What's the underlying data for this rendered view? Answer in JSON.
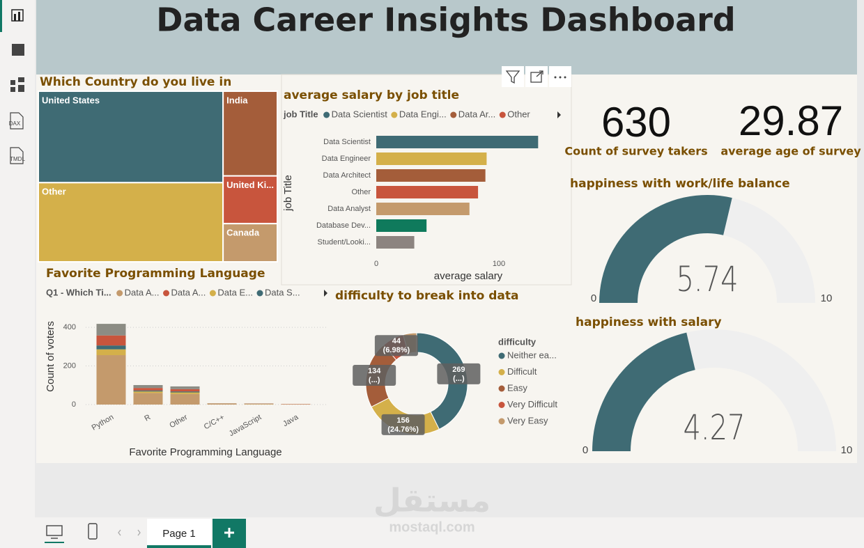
{
  "sidebar": {
    "items": [
      "DAX",
      "TMDL"
    ]
  },
  "header": {
    "title": "Data Career Insights Dashboard"
  },
  "chart_data": [
    {
      "type": "treemap",
      "title": "Which Country do you live in",
      "categories": [
        "United States",
        "Other",
        "India",
        "United Ki...",
        "Canada"
      ],
      "values": [
        261,
        226,
        71,
        40,
        32
      ],
      "colors": [
        "#3f6b74",
        "#d4b04a",
        "#a45d3a",
        "#c8553d",
        "#c49a6c"
      ]
    },
    {
      "type": "hbar",
      "title": "average salary by job title",
      "legend": {
        "title": "job Title",
        "items": [
          {
            "name": "Data Scientist",
            "color": "#3f6b74"
          },
          {
            "name": "Data Engi...",
            "color": "#d4b04a"
          },
          {
            "name": "Data Ar...",
            "color": "#a45d3a"
          },
          {
            "name": "Other",
            "color": "#c8553d"
          }
        ]
      },
      "y_label": "job Title",
      "x_label": "average salary",
      "categories": [
        "Data Scientist",
        "Data Engineer",
        "Data Architect",
        "Other",
        "Data Analyst",
        "Database Dev...",
        "Student/Looki..."
      ],
      "values": [
        132,
        90,
        89,
        83,
        76,
        41,
        31
      ],
      "colors": [
        "#3f6b74",
        "#d4b04a",
        "#a45d3a",
        "#c8553d",
        "#c49a6c",
        "#0f7a5c",
        "#8c8480"
      ],
      "xlim": [
        0,
        150
      ],
      "xticks": [
        0,
        100
      ]
    },
    {
      "type": "stacked_column",
      "title": "Favorite Programming Language",
      "legend_title": "Q1 - Which Ti...",
      "y_label": "Count of voters",
      "x_label": "Favorite Programming Language",
      "categories": [
        "Python",
        "R",
        "Other",
        "C/C++",
        "JavaScript",
        "Java"
      ],
      "series": [
        {
          "name": "Data A...",
          "color": "#c49a6c",
          "values": [
            256,
            60,
            55,
            4,
            3,
            2
          ]
        },
        {
          "name": "Data E...",
          "color": "#d4b04a",
          "values": [
            30,
            8,
            8,
            1,
            1,
            0
          ]
        },
        {
          "name": "Data S...",
          "color": "#3f6b74",
          "values": [
            20,
            5,
            5,
            0,
            0,
            0
          ]
        },
        {
          "name": "Data A...",
          "color": "#c8553d",
          "values": [
            52,
            13,
            12,
            1,
            1,
            1
          ]
        },
        {
          "color": "#8c8c84",
          "values": [
            60,
            15,
            14,
            1,
            1,
            0
          ]
        }
      ],
      "legend_order": [
        0,
        3,
        1,
        2
      ],
      "ylim": [
        0,
        440
      ],
      "yticks": [
        0,
        200,
        400
      ],
      "grid": true
    },
    {
      "type": "donut",
      "title": "difficulty to break into data",
      "legend_title": "difficulty",
      "categories": [
        "Neither ea...",
        "Difficult",
        "Easy",
        "Very Difficult",
        "Very Easy"
      ],
      "values": [
        269,
        156,
        134,
        44,
        27
      ],
      "value_labels": [
        [
          "269",
          "(...)"
        ],
        [
          "156",
          "(24.76%)"
        ],
        [
          "134",
          "(...)"
        ],
        [
          "44",
          "(6.98%)"
        ],
        null
      ],
      "colors": [
        "#3f6b74",
        "#d4b04a",
        "#a45d3a",
        "#c8553d",
        "#c49a6c"
      ]
    },
    {
      "type": "card",
      "value": 630,
      "label": "Count of survey takers"
    },
    {
      "type": "card",
      "value": 29.87,
      "label": "average age of survey"
    },
    {
      "type": "gauge",
      "title": "happiness with work/life balance",
      "value": 5.74,
      "min": 0,
      "max": 10,
      "color": "#3f6b74"
    },
    {
      "type": "gauge",
      "title": "happiness with salary",
      "value": 4.27,
      "min": 0,
      "max": 10,
      "color": "#3f6b74"
    }
  ],
  "page_tabs": {
    "active": "Page 1"
  },
  "watermark": {
    "arabic": "مستقل",
    "latin": "mostaql.com"
  }
}
